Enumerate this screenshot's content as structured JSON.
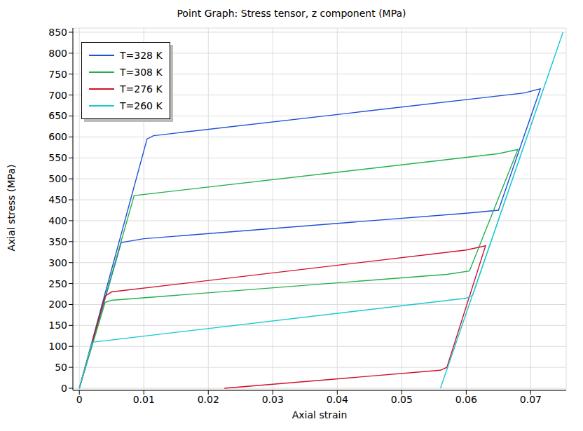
{
  "chart_data": {
    "type": "line",
    "title": "Point Graph: Stress tensor, z component (MPa)",
    "x_label": "Axial strain",
    "y_label": "Axial stress (MPa)",
    "xlim": [
      -0.001,
      0.0755
    ],
    "ylim": [
      -5,
      860
    ],
    "xticks": [
      0,
      0.01,
      0.02,
      0.03,
      0.04,
      0.05,
      0.06,
      0.07
    ],
    "yticks": [
      0,
      50,
      100,
      150,
      200,
      250,
      300,
      350,
      400,
      450,
      500,
      550,
      600,
      650,
      700,
      750,
      800,
      850
    ],
    "grid": true,
    "legend": "upper left",
    "series": [
      {
        "name": "T=328 K",
        "color": "#1f4fd8",
        "x": [
          0,
          0.0105,
          0.0115,
          0.069,
          0.0715,
          0.065,
          0.06,
          0.01,
          0.0065,
          0
        ],
        "values": [
          0,
          595,
          603,
          705,
          715,
          425,
          418,
          357,
          348,
          0
        ]
      },
      {
        "name": "T=308 K",
        "color": "#22b14c",
        "x": [
          0,
          0.0085,
          0.065,
          0.068,
          0.0605,
          0.057,
          0.005,
          0.004,
          0
        ],
        "values": [
          0,
          460,
          560,
          570,
          280,
          272,
          210,
          205,
          0
        ]
      },
      {
        "name": "T=276 K",
        "color": "#d0102a",
        "x": [
          0,
          0.004,
          0.005,
          0.06,
          0.063,
          0.057,
          0.056,
          0.0225
        ],
        "values": [
          0,
          220,
          230,
          330,
          340,
          50,
          43,
          0
        ]
      },
      {
        "name": "T=260 K",
        "color": "#18c8d0",
        "x": [
          0,
          0.002,
          0.06,
          0.061,
          0.075,
          0.056
        ],
        "values": [
          0,
          110,
          215,
          222,
          850,
          0
        ]
      }
    ]
  }
}
